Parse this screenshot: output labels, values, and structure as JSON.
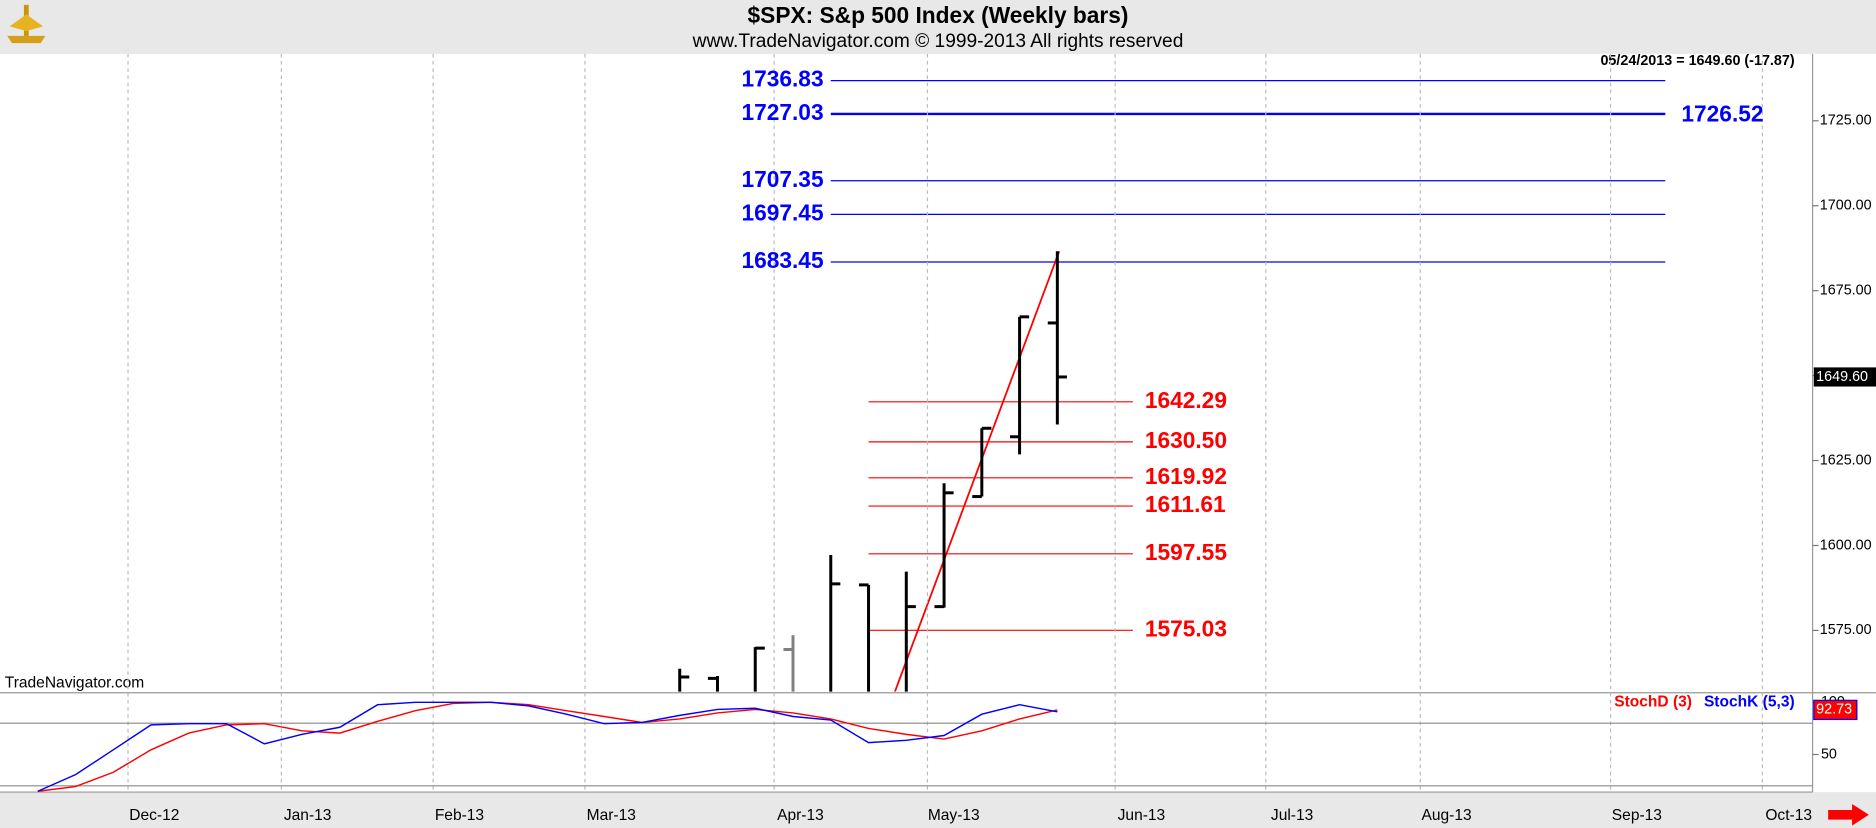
{
  "chart_data": [
    {
      "type": "ohlc",
      "title": "$SPX:  S&p 500 Index  (Weekly bars)",
      "subtitle": "www.TradeNavigator.com © 1999-2013 All rights reserved",
      "header": "05/24/2013 = 1649.60 (-17.87)",
      "watermark": "TradeNavigator.com",
      "x": [
        18,
        19,
        20,
        21,
        22,
        23,
        24,
        25,
        26,
        27,
        28
      ],
      "open": [
        null,
        1560.9,
        null,
        1569.4,
        null,
        1588.4,
        null,
        1582.0,
        1614.4,
        1632.0,
        1665.5
      ],
      "high": [
        1563.7,
        1561.6,
        1570.1,
        1573.6,
        1597.2,
        1588.4,
        1592.3,
        1618.3,
        1634.5,
        1667.3,
        1686.6
      ],
      "low": [
        null,
        null,
        null,
        null,
        null,
        null,
        null,
        1581.7,
        1614.4,
        1626.8,
        1635.6
      ],
      "close": [
        1561.3,
        null,
        1569.8,
        null,
        1588.7,
        null,
        1582.0,
        1615.5,
        1634.5,
        1667.3,
        1649.6
      ],
      "bar_colors": [
        "#000000",
        "#000000",
        "#000000",
        "#808080",
        "#000000",
        "#000000",
        "#000000",
        "#000000",
        "#000000",
        "#000000",
        "#000000"
      ],
      "xlim": [
        0,
        48
      ],
      "ylim": [
        1557,
        1744.7
      ],
      "yticks": [
        {
          "value": 1575,
          "label": "1575.00"
        },
        {
          "value": 1600,
          "label": "1600.00"
        },
        {
          "value": 1625,
          "label": "1625.00"
        },
        {
          "value": 1650,
          "label": "1650.00"
        },
        {
          "value": 1675,
          "label": "1675.00"
        },
        {
          "value": 1700,
          "label": "1700.00"
        },
        {
          "value": 1725,
          "label": "1725.00"
        }
      ],
      "last_price": {
        "value": 1649.6,
        "label": "1649.60"
      },
      "levels_blue": {
        "color": "#0000ff",
        "x_range": [
          22,
          44.1
        ],
        "values": [
          1736.83,
          1727.03,
          1707.35,
          1697.45,
          1683.45
        ],
        "line_widths": [
          1,
          2,
          1,
          1,
          1
        ]
      },
      "level_note": 1726.52,
      "levels_red": {
        "color": "#ff0000",
        "x_range": [
          23,
          30
        ],
        "values": [
          1642.29,
          1630.5,
          1619.92,
          1611.61,
          1597.55,
          1575.03
        ],
        "value_labels": [
          "1642.29",
          "1630.50",
          "1619.92",
          "1611.61",
          "1597.55",
          "1575.03"
        ]
      },
      "trend_line": {
        "color": "#ff0000",
        "x": [
          23.7,
          28.05
        ],
        "y": [
          1557,
          1686.6
        ]
      }
    },
    {
      "type": "line",
      "x": [
        1,
        2,
        3,
        4,
        5,
        6,
        7,
        8,
        9,
        10,
        11,
        12,
        13,
        14,
        15,
        16,
        17,
        18,
        19,
        20,
        21,
        22,
        23,
        24,
        25,
        26,
        27,
        28
      ],
      "series": [
        {
          "name": "StochD (3)",
          "color": "#ff0000",
          "values": [
            14.8,
            19.3,
            33.0,
            54.5,
            70.5,
            78.4,
            79.5,
            72.7,
            70.5,
            81.8,
            92.0,
            98.9,
            100,
            97.7,
            92.0,
            86.4,
            80.7,
            84.1,
            89.8,
            93.2,
            89.8,
            84.1,
            75.0,
            69.3,
            64.8,
            72.7,
            84.1,
            92.73
          ]
        },
        {
          "name": "StochK (5,3)",
          "color": "#0000ff",
          "values": [
            14.8,
            30.7,
            54.5,
            78.4,
            79.5,
            79.5,
            60.2,
            69.3,
            76.1,
            97.7,
            100,
            100,
            100,
            96.6,
            88.6,
            79.5,
            80.7,
            87.5,
            93.2,
            94.3,
            86.4,
            83.0,
            61.4,
            63.6,
            68.2,
            88.6,
            97.7,
            90.9
          ]
        }
      ],
      "ylim": [
        14,
        108
      ],
      "yticks": [
        50,
        100
      ],
      "hlines": [
        20,
        80
      ],
      "last_value": 92.73,
      "xlim": [
        0,
        48
      ],
      "xticks": [
        {
          "value": 3.39,
          "label": "Dec-12"
        },
        {
          "value": 7.45,
          "label": "Jan-13"
        },
        {
          "value": 11.47,
          "label": "Feb-13"
        },
        {
          "value": 15.49,
          "label": "Mar-13"
        },
        {
          "value": 20.5,
          "label": "Apr-13"
        },
        {
          "value": 24.56,
          "label": "May-13"
        },
        {
          "value": 29.53,
          "label": "Jun-13"
        },
        {
          "value": 33.52,
          "label": "Jul-13"
        },
        {
          "value": 37.61,
          "label": "Aug-13"
        },
        {
          "value": 42.65,
          "label": "Sep-13"
        },
        {
          "value": 46.67,
          "label": "Oct-13"
        }
      ]
    }
  ]
}
